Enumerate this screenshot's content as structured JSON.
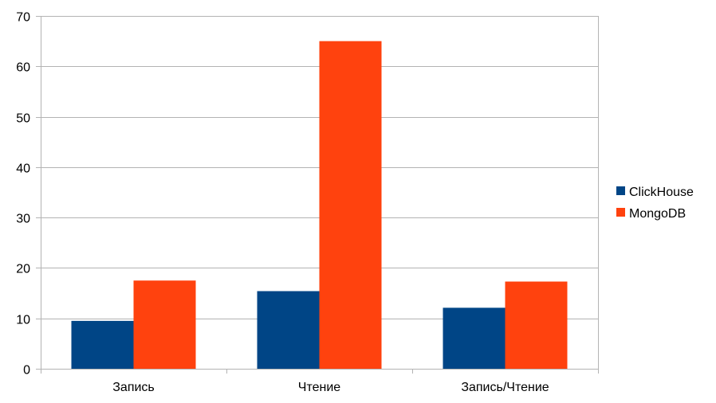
{
  "chart_data": {
    "type": "bar",
    "title": "",
    "xlabel": "",
    "ylabel": "",
    "categories": [
      "Запись",
      "Чтение",
      "Запись/Чтение"
    ],
    "series": [
      {
        "name": "ClickHouse",
        "color": "#004586",
        "values": [
          9.5,
          15.4,
          12.1
        ]
      },
      {
        "name": "MongoDB",
        "color": "#ff420e",
        "values": [
          17.5,
          65.0,
          17.3
        ]
      }
    ],
    "ylim": [
      0,
      70
    ],
    "yticks": [
      "0",
      "10",
      "20",
      "30",
      "40",
      "50",
      "60",
      "70"
    ],
    "grid": true,
    "legend": "right"
  }
}
